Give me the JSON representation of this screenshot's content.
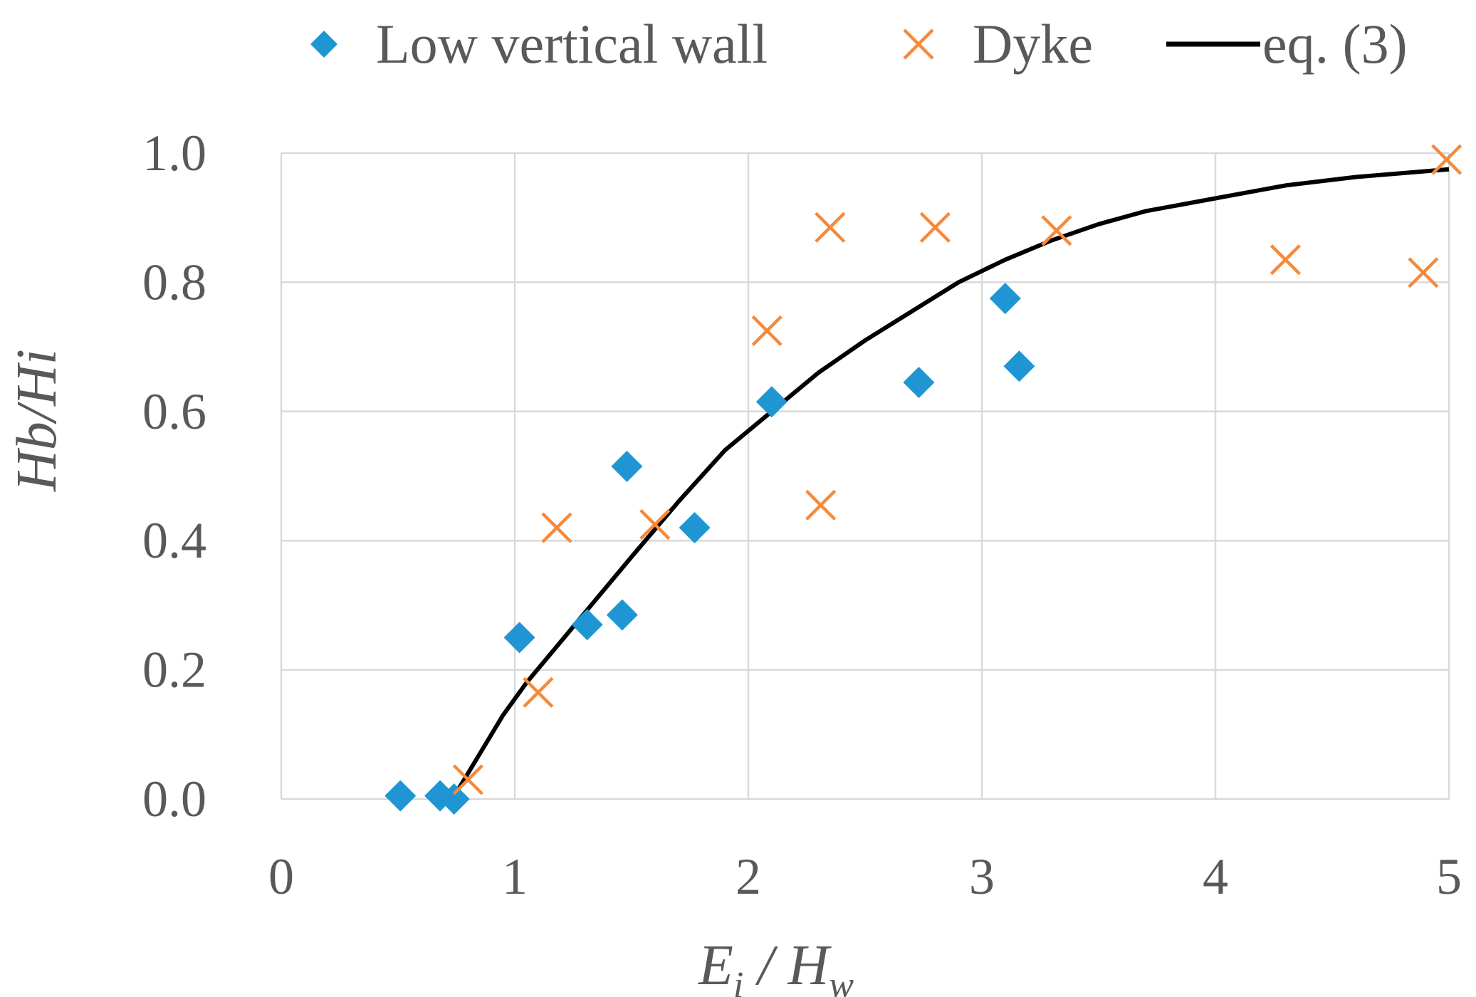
{
  "chart_data": {
    "type": "scatter",
    "title": "",
    "xlabel": {
      "main": "E",
      "main_sub": "i",
      "sep": " / ",
      "denom": "H",
      "denom_sub": "w"
    },
    "ylabel": "Hb/Hi",
    "xlim": [
      0,
      5
    ],
    "ylim": [
      0,
      1.0
    ],
    "x_ticks": [
      0,
      1,
      2,
      3,
      4,
      5
    ],
    "x_tick_labels": [
      "0",
      "1",
      "2",
      "3",
      "4",
      "5"
    ],
    "y_ticks": [
      0,
      0.2,
      0.4,
      0.6,
      0.8,
      1.0
    ],
    "y_tick_labels": [
      "0.0",
      "0.2",
      "0.4",
      "0.6",
      "0.8",
      "1.0"
    ],
    "grid": true,
    "legend_position": "top",
    "series": [
      {
        "name": "Low vertical wall",
        "marker": "diamond",
        "color": "#1f96d3",
        "points": [
          [
            0.51,
            0.005
          ],
          [
            0.68,
            0.005
          ],
          [
            0.74,
            0.0
          ],
          [
            1.02,
            0.25
          ],
          [
            1.31,
            0.27
          ],
          [
            1.46,
            0.285
          ],
          [
            1.48,
            0.515
          ],
          [
            1.77,
            0.42
          ],
          [
            2.1,
            0.615
          ],
          [
            2.73,
            0.645
          ],
          [
            3.1,
            0.775
          ],
          [
            3.16,
            0.67
          ]
        ]
      },
      {
        "name": "Dyke",
        "marker": "x",
        "color": "#f58a3c",
        "points": [
          [
            0.8,
            0.03
          ],
          [
            1.1,
            0.165
          ],
          [
            1.18,
            0.42
          ],
          [
            1.6,
            0.425
          ],
          [
            2.08,
            0.725
          ],
          [
            2.31,
            0.455
          ],
          [
            2.35,
            0.885
          ],
          [
            2.8,
            0.885
          ],
          [
            3.32,
            0.88
          ],
          [
            4.3,
            0.835
          ],
          [
            4.89,
            0.815
          ],
          [
            4.99,
            0.99
          ]
        ]
      },
      {
        "name": "eq. (3)",
        "marker": "line",
        "color": "#000000",
        "points": [
          [
            0.75,
            0.01
          ],
          [
            0.85,
            0.07
          ],
          [
            0.95,
            0.13
          ],
          [
            1.05,
            0.18
          ],
          [
            1.2,
            0.245
          ],
          [
            1.35,
            0.31
          ],
          [
            1.5,
            0.375
          ],
          [
            1.7,
            0.46
          ],
          [
            1.9,
            0.54
          ],
          [
            2.1,
            0.6
          ],
          [
            2.3,
            0.66
          ],
          [
            2.5,
            0.71
          ],
          [
            2.7,
            0.755
          ],
          [
            2.9,
            0.8
          ],
          [
            3.1,
            0.835
          ],
          [
            3.3,
            0.865
          ],
          [
            3.5,
            0.89
          ],
          [
            3.7,
            0.91
          ],
          [
            4.0,
            0.93
          ],
          [
            4.3,
            0.95
          ],
          [
            4.6,
            0.963
          ],
          [
            5.0,
            0.975
          ]
        ]
      }
    ]
  }
}
